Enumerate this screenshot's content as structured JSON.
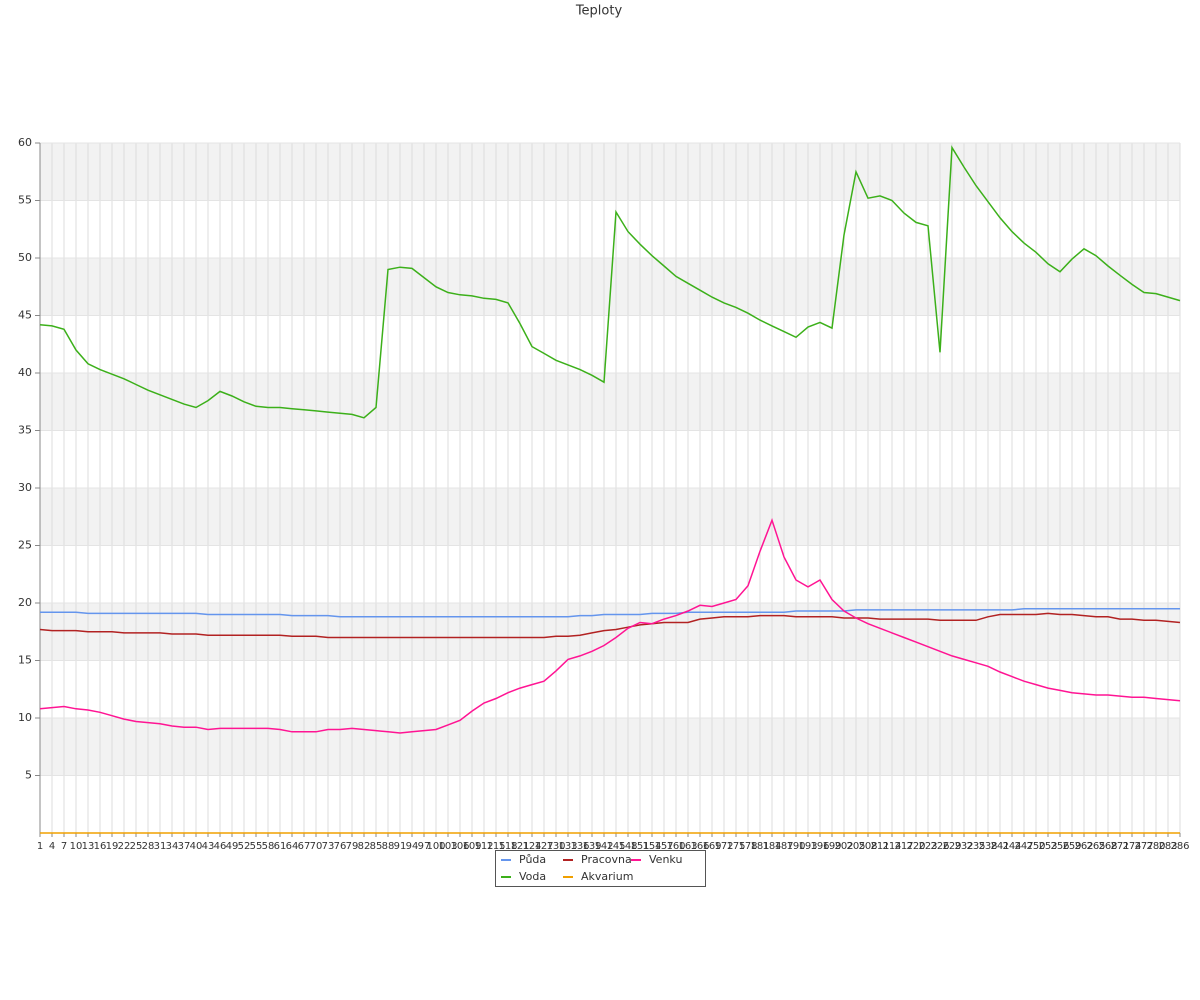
{
  "chart_data": {
    "type": "line",
    "title": "Teploty",
    "x": [
      1,
      4,
      7,
      10,
      13,
      16,
      19,
      22,
      25,
      28,
      31,
      34,
      37,
      40,
      43,
      46,
      49,
      52,
      55,
      58,
      61,
      64,
      67,
      70,
      73,
      76,
      79,
      82,
      85,
      88,
      91,
      94,
      97,
      100,
      103,
      106,
      109,
      112,
      115,
      118,
      121,
      124,
      127,
      130,
      133,
      136,
      139,
      142,
      145,
      148,
      151,
      154,
      157,
      160,
      163,
      166,
      169,
      172,
      175,
      178,
      181,
      184,
      187,
      190,
      193,
      196,
      199,
      202,
      205,
      208,
      211,
      214,
      217,
      220,
      223,
      226,
      229,
      232,
      235,
      238,
      241,
      244,
      247,
      250,
      253,
      256,
      259,
      262,
      265,
      268,
      271,
      274,
      277,
      280,
      283,
      286
    ],
    "xlim": [
      1,
      286
    ],
    "ylim": [
      0,
      60
    ],
    "yticks": [
      5,
      10,
      15,
      20,
      25,
      30,
      35,
      40,
      45,
      50,
      55,
      60
    ],
    "grid": true,
    "legend": "bottom",
    "series": [
      {
        "name": "Půda",
        "color": "#6495ed",
        "values": [
          19.2,
          19.2,
          19.2,
          19.2,
          19.1,
          19.1,
          19.1,
          19.1,
          19.1,
          19.1,
          19.1,
          19.1,
          19.1,
          19.1,
          19.0,
          19.0,
          19.0,
          19.0,
          19.0,
          19.0,
          19.0,
          18.9,
          18.9,
          18.9,
          18.9,
          18.8,
          18.8,
          18.8,
          18.8,
          18.8,
          18.8,
          18.8,
          18.8,
          18.8,
          18.8,
          18.8,
          18.8,
          18.8,
          18.8,
          18.8,
          18.8,
          18.8,
          18.8,
          18.8,
          18.8,
          18.9,
          18.9,
          19.0,
          19.0,
          19.0,
          19.0,
          19.1,
          19.1,
          19.1,
          19.2,
          19.2,
          19.2,
          19.2,
          19.2,
          19.2,
          19.2,
          19.2,
          19.2,
          19.3,
          19.3,
          19.3,
          19.3,
          19.3,
          19.4,
          19.4,
          19.4,
          19.4,
          19.4,
          19.4,
          19.4,
          19.4,
          19.4,
          19.4,
          19.4,
          19.4,
          19.4,
          19.4,
          19.5,
          19.5,
          19.5,
          19.5,
          19.5,
          19.5,
          19.5,
          19.5,
          19.5,
          19.5,
          19.5,
          19.5,
          19.5,
          19.5
        ]
      },
      {
        "name": "Pracovna",
        "color": "#b22222",
        "values": [
          17.7,
          17.6,
          17.6,
          17.6,
          17.5,
          17.5,
          17.5,
          17.4,
          17.4,
          17.4,
          17.4,
          17.3,
          17.3,
          17.3,
          17.2,
          17.2,
          17.2,
          17.2,
          17.2,
          17.2,
          17.2,
          17.1,
          17.1,
          17.1,
          17.0,
          17.0,
          17.0,
          17.0,
          17.0,
          17.0,
          17.0,
          17.0,
          17.0,
          17.0,
          17.0,
          17.0,
          17.0,
          17.0,
          17.0,
          17.0,
          17.0,
          17.0,
          17.0,
          17.1,
          17.1,
          17.2,
          17.4,
          17.6,
          17.7,
          17.9,
          18.1,
          18.2,
          18.3,
          18.3,
          18.3,
          18.6,
          18.7,
          18.8,
          18.8,
          18.8,
          18.9,
          18.9,
          18.9,
          18.8,
          18.8,
          18.8,
          18.8,
          18.7,
          18.7,
          18.7,
          18.6,
          18.6,
          18.6,
          18.6,
          18.6,
          18.5,
          18.5,
          18.5,
          18.5,
          18.8,
          19.0,
          19.0,
          19.0,
          19.0,
          19.1,
          19.0,
          19.0,
          18.9,
          18.8,
          18.8,
          18.6,
          18.6,
          18.5,
          18.5,
          18.4,
          18.3
        ]
      },
      {
        "name": "Venku",
        "color": "#ff1493",
        "values": [
          10.8,
          10.9,
          11.0,
          10.8,
          10.7,
          10.5,
          10.2,
          9.9,
          9.7,
          9.6,
          9.5,
          9.3,
          9.2,
          9.2,
          9.0,
          9.1,
          9.1,
          9.1,
          9.1,
          9.1,
          9.0,
          8.8,
          8.8,
          8.8,
          9.0,
          9.0,
          9.1,
          9.0,
          8.9,
          8.8,
          8.7,
          8.8,
          8.9,
          9.0,
          9.4,
          9.8,
          10.6,
          11.3,
          11.7,
          12.2,
          12.6,
          12.9,
          13.2,
          14.1,
          15.1,
          15.4,
          15.8,
          16.3,
          17.0,
          17.8,
          18.3,
          18.2,
          18.6,
          18.9,
          19.3,
          19.8,
          19.7,
          20.0,
          20.3,
          21.5,
          24.5,
          27.2,
          24.0,
          22.0,
          21.4,
          22.0,
          20.3,
          19.3,
          18.7,
          18.2,
          17.8,
          17.4,
          17.0,
          16.6,
          16.2,
          15.8,
          15.4,
          15.1,
          14.8,
          14.5,
          14.0,
          13.6,
          13.2,
          12.9,
          12.6,
          12.4,
          12.2,
          12.1,
          12.0,
          12.0,
          11.9,
          11.8,
          11.8,
          11.7,
          11.6,
          11.5
        ]
      },
      {
        "name": "Voda",
        "color": "#3cb01a",
        "values": [
          44.2,
          44.1,
          43.8,
          42.0,
          40.8,
          40.3,
          39.9,
          39.5,
          39.0,
          38.5,
          38.1,
          37.7,
          37.3,
          37.0,
          37.6,
          38.4,
          38.0,
          37.5,
          37.1,
          37.0,
          37.0,
          36.9,
          36.8,
          36.7,
          36.6,
          36.5,
          36.4,
          36.1,
          37.0,
          49.0,
          49.2,
          49.1,
          48.3,
          47.5,
          47.0,
          46.8,
          46.7,
          46.5,
          46.4,
          46.1,
          44.3,
          42.3,
          41.7,
          41.1,
          40.7,
          40.3,
          39.8,
          39.2,
          54.0,
          52.3,
          51.2,
          50.2,
          49.3,
          48.4,
          47.8,
          47.2,
          46.6,
          46.1,
          45.7,
          45.2,
          44.6,
          44.1,
          43.6,
          43.1,
          44.0,
          44.4,
          43.9,
          52.0,
          57.5,
          55.2,
          55.4,
          55.0,
          53.9,
          53.1,
          52.8,
          41.8,
          59.6,
          57.9,
          56.3,
          54.9,
          53.5,
          52.3,
          51.3,
          50.5,
          49.5,
          48.8,
          49.9,
          50.8,
          50.2,
          49.3,
          48.5,
          47.7,
          47.0,
          46.9,
          46.6,
          46.3
        ]
      },
      {
        "name": "Akvarium",
        "color": "#f0a000",
        "values": [
          0,
          0,
          0,
          0,
          0,
          0,
          0,
          0,
          0,
          0,
          0,
          0,
          0,
          0,
          0,
          0,
          0,
          0,
          0,
          0,
          0,
          0,
          0,
          0,
          0,
          0,
          0,
          0,
          0,
          0,
          0,
          0,
          0,
          0,
          0,
          0,
          0,
          0,
          0,
          0,
          0,
          0,
          0,
          0,
          0,
          0,
          0,
          0,
          0,
          0,
          0,
          0,
          0,
          0,
          0,
          0,
          0,
          0,
          0,
          0,
          0,
          0,
          0,
          0,
          0,
          0,
          0,
          0,
          0,
          0,
          0,
          0,
          0,
          0,
          0,
          0,
          0,
          0,
          0,
          0,
          0,
          0,
          0,
          0,
          0,
          0,
          0,
          0,
          0,
          0,
          0,
          0,
          0,
          0,
          0,
          0
        ]
      }
    ]
  }
}
